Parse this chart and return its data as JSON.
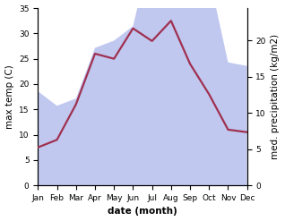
{
  "months": [
    "Jan",
    "Feb",
    "Mar",
    "Apr",
    "May",
    "Jun",
    "Jul",
    "Aug",
    "Sep",
    "Oct",
    "Nov",
    "Dec"
  ],
  "temp": [
    7.5,
    9.0,
    16.0,
    26.0,
    25.0,
    31.0,
    28.5,
    32.5,
    24.0,
    18.0,
    11.0,
    10.5
  ],
  "precip": [
    13.0,
    11.0,
    12.0,
    19.0,
    20.0,
    22.0,
    33.0,
    33.0,
    28.0,
    29.0,
    17.0,
    16.5
  ],
  "temp_color": "#a03050",
  "precip_fill_color": "#c0c8f0",
  "temp_ylim": [
    0,
    35
  ],
  "precip_ylim": [
    0,
    24.5
  ],
  "temp_yticks": [
    0,
    5,
    10,
    15,
    20,
    25,
    30,
    35
  ],
  "precip_yticks": [
    0,
    5,
    10,
    15,
    20
  ],
  "precip_yticklabels": [
    "0",
    "5",
    "10",
    "15",
    "20"
  ],
  "xlabel": "date (month)",
  "ylabel_left": "max temp (C)",
  "ylabel_right": "med. precipitation (kg/m2)",
  "bg_color": "#ffffff",
  "label_fontsize": 7.5,
  "tick_fontsize": 6.5
}
